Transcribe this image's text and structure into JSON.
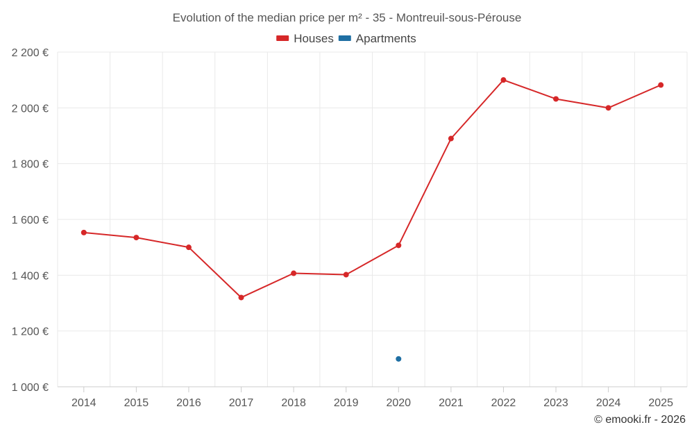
{
  "chart_data": {
    "type": "line",
    "title": "Evolution of the median price per m² - 35 - Montreuil-sous-Pérouse",
    "categories": [
      "2014",
      "2015",
      "2016",
      "2017",
      "2018",
      "2019",
      "2020",
      "2021",
      "2022",
      "2023",
      "2024",
      "2025"
    ],
    "y_ticks": [
      {
        "value": 1000,
        "label": "1 000 €"
      },
      {
        "value": 1200,
        "label": "1 200 €"
      },
      {
        "value": 1400,
        "label": "1 400 €"
      },
      {
        "value": 1600,
        "label": "1 600 €"
      },
      {
        "value": 1800,
        "label": "1 800 €"
      },
      {
        "value": 2000,
        "label": "2 000 €"
      },
      {
        "value": 2200,
        "label": "2 200 €"
      }
    ],
    "ylim": [
      1000,
      2200
    ],
    "grid": true,
    "legend_position": "top-center",
    "series": [
      {
        "name": "Houses",
        "color": "#d62728",
        "values": [
          1553,
          1535,
          1500,
          1320,
          1407,
          1402,
          1507,
          1890,
          2100,
          2032,
          2000,
          2082
        ]
      },
      {
        "name": "Apartments",
        "color": "#1f6fa3",
        "values": [
          null,
          null,
          null,
          null,
          null,
          null,
          1100,
          null,
          null,
          null,
          null,
          null
        ]
      }
    ]
  },
  "credit": "© emooki.fr - 2026"
}
